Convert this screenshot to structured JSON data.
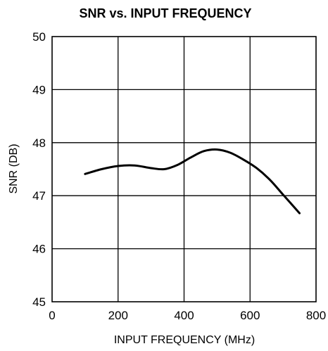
{
  "chart_data": {
    "type": "line",
    "title": "SNR vs. INPUT FREQUENCY",
    "xlabel": "INPUT FREQUENCY (MHz)",
    "ylabel": "SNR (DB)",
    "xlim": [
      0,
      800
    ],
    "ylim": [
      45,
      50
    ],
    "x_ticks": [
      0,
      200,
      400,
      600,
      800
    ],
    "y_ticks": [
      45,
      46,
      47,
      48,
      49,
      50
    ],
    "x_tick_labels": [
      "0",
      "200",
      "400",
      "600",
      "800"
    ],
    "y_tick_labels": [
      "45",
      "46",
      "47",
      "48",
      "49",
      "50"
    ],
    "grid": true,
    "colors": {
      "line": "#000000",
      "grid": "#000000",
      "background": "#ffffff"
    },
    "series": [
      {
        "x": [
          100,
          150,
          200,
          250,
          300,
          340,
          380,
          420,
          460,
          500,
          540,
          580,
          620,
          660,
          700,
          750
        ],
        "values": [
          47.41,
          47.5,
          47.56,
          47.57,
          47.52,
          47.5,
          47.58,
          47.72,
          47.84,
          47.87,
          47.81,
          47.68,
          47.52,
          47.3,
          47.02,
          46.67
        ]
      }
    ]
  }
}
